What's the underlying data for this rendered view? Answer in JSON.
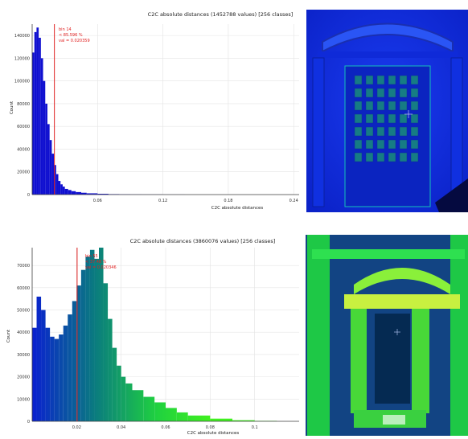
{
  "charts": [
    {
      "title": "C2C absolute distances (1452788 values)  [256 classes]",
      "xlabel": "C2C absolute distances",
      "ylabel": "Count",
      "marker": {
        "line1": "bin 14",
        "line2": "< 85.596 %",
        "line3": "val = 0.020359"
      },
      "colors": {
        "bars": "#1010d0",
        "marker": "#e02020"
      }
    },
    {
      "title": "C2C absolute distances (3860076 values)  [256 classes]",
      "xlabel": "C2C absolute distances",
      "ylabel": "Count",
      "marker": {
        "line1": "bin 55",
        "line2": "< 37.48 %",
        "line3": "val = 0.020346"
      },
      "colors": {
        "bars_start": "#0a20d0",
        "bars_end": "#30f020",
        "marker": "#e02020"
      }
    }
  ],
  "chart_data": [
    {
      "type": "bar",
      "title": "C2C absolute distances (1452788 values)  [256 classes]",
      "xlabel": "C2C absolute distances",
      "ylabel": "Count",
      "xlim": [
        0.0,
        0.245
      ],
      "ylim": [
        0,
        150000
      ],
      "xticks": [
        0.06,
        0.12,
        0.18,
        0.24
      ],
      "yticks": [
        0,
        20000,
        40000,
        60000,
        80000,
        100000,
        120000,
        140000
      ],
      "marker_x": 0.0204,
      "series": [
        {
          "x": [
            0.0,
            0.002,
            0.004,
            0.006,
            0.008,
            0.01,
            0.012,
            0.014,
            0.016,
            0.018,
            0.02,
            0.022,
            0.024,
            0.026,
            0.028,
            0.03,
            0.033,
            0.036,
            0.04,
            0.045,
            0.05,
            0.06,
            0.07,
            0.08,
            0.09,
            0.1,
            0.12
          ],
          "values": [
            125000,
            143000,
            147000,
            138000,
            120000,
            100000,
            80000,
            62000,
            48000,
            36000,
            26000,
            18000,
            12000,
            9000,
            7000,
            5000,
            4000,
            3000,
            2200,
            1600,
            1100,
            700,
            400,
            250,
            150,
            100,
            50
          ]
        }
      ]
    },
    {
      "type": "bar",
      "title": "C2C absolute distances (3860076 values)  [256 classes]",
      "xlabel": "C2C absolute distances",
      "ylabel": "Count",
      "xlim": [
        0.0,
        0.12
      ],
      "ylim": [
        0,
        78000
      ],
      "xticks": [
        0.02,
        0.04,
        0.06,
        0.08,
        0.1
      ],
      "yticks": [
        0,
        10000,
        20000,
        30000,
        40000,
        50000,
        60000,
        70000
      ],
      "marker_x": 0.0202,
      "series": [
        {
          "x": [
            0.0,
            0.002,
            0.004,
            0.006,
            0.008,
            0.01,
            0.012,
            0.014,
            0.016,
            0.018,
            0.02,
            0.022,
            0.024,
            0.026,
            0.028,
            0.03,
            0.032,
            0.034,
            0.036,
            0.038,
            0.04,
            0.042,
            0.045,
            0.05,
            0.055,
            0.06,
            0.065,
            0.07,
            0.08,
            0.09,
            0.1
          ],
          "values": [
            42000,
            56000,
            50000,
            42000,
            38000,
            37000,
            39000,
            43000,
            48000,
            54000,
            61000,
            68000,
            74000,
            77000,
            73000,
            78000,
            62000,
            46000,
            33000,
            25000,
            20000,
            17000,
            14000,
            11000,
            8500,
            6000,
            4000,
            2600,
            1200,
            500,
            200
          ]
        }
      ]
    }
  ]
}
